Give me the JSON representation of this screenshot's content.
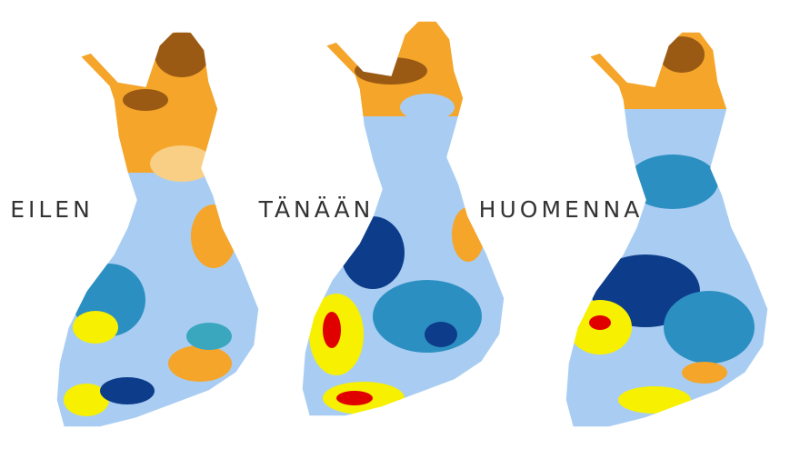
{
  "maps": [
    {
      "label": "EILEN"
    },
    {
      "label": "TÄNÄÄN"
    },
    {
      "label": "HUOMENNA"
    }
  ]
}
